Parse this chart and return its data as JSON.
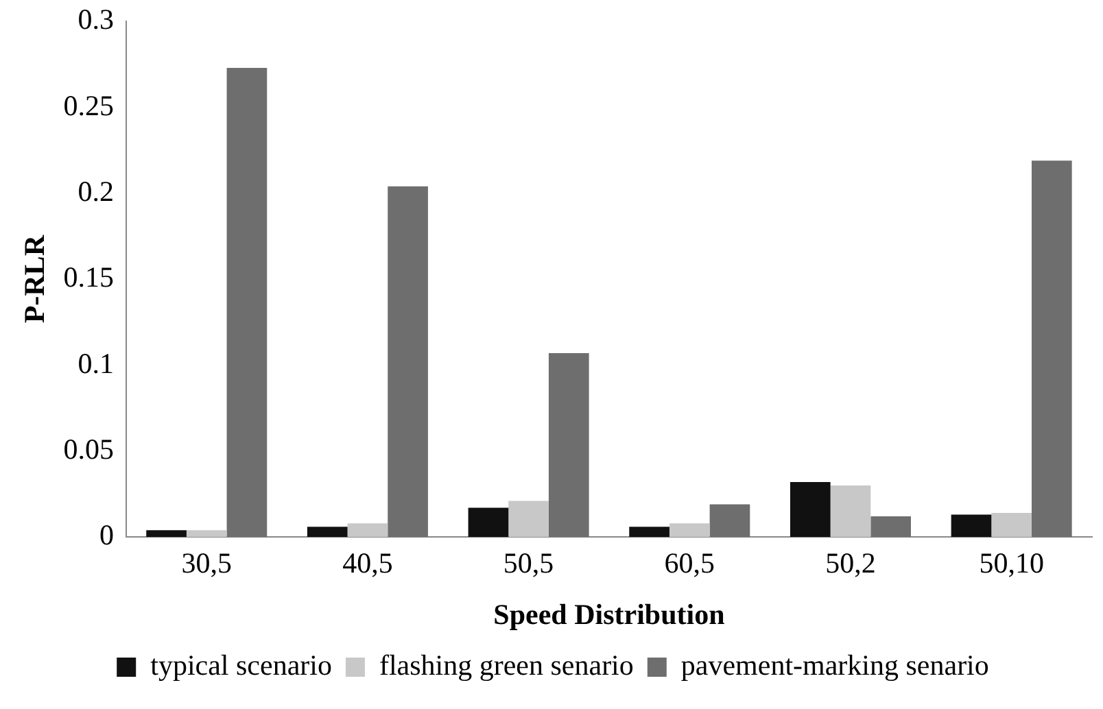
{
  "chart_data": {
    "type": "bar",
    "xlabel": "Speed Distribution",
    "ylabel": "P-RLR",
    "categories": [
      "30,5",
      "40,5",
      "50,5",
      "60,5",
      "50,2",
      "50,10"
    ],
    "series": [
      {
        "name": "typical scenario",
        "color": "#111111",
        "values": [
          0.004,
          0.006,
          0.017,
          0.006,
          0.032,
          0.013
        ]
      },
      {
        "name": "flashing green senario",
        "color": "#c8c8c8",
        "values": [
          0.004,
          0.008,
          0.021,
          0.008,
          0.03,
          0.014
        ]
      },
      {
        "name": "pavement-marking senario",
        "color": "#6e6e6e",
        "values": [
          0.273,
          0.204,
          0.107,
          0.019,
          0.012,
          0.219
        ]
      }
    ],
    "ylim": [
      0,
      0.3
    ],
    "yticks": [
      0,
      0.05,
      0.1,
      0.15,
      0.2,
      0.25,
      0.3
    ],
    "grid": false,
    "legend": "bottom"
  }
}
